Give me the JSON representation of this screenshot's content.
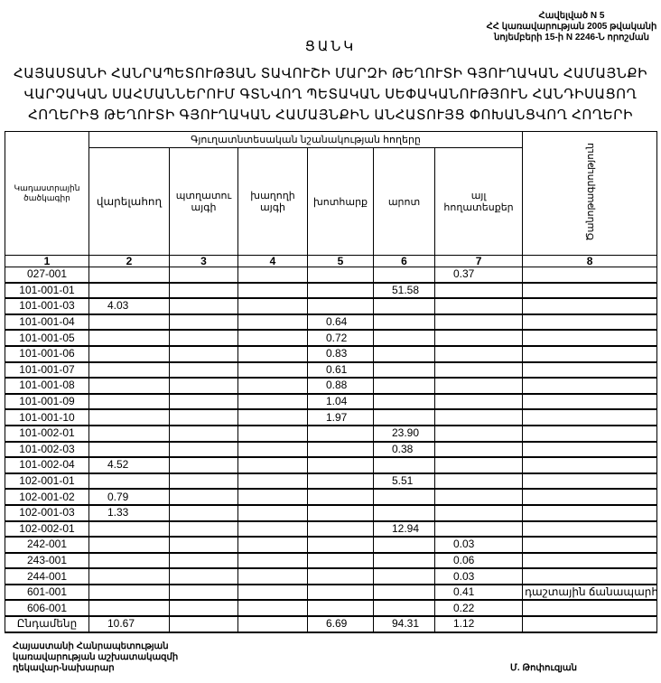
{
  "annex": {
    "line1": "Հավելված N 5",
    "line2": "ՀՀ կառավարության 2005 թվականի",
    "line3": "նոյեմբերի 15-ի N 2246-Ն որոշման"
  },
  "title": "ՑԱՆԿ",
  "heading": {
    "line1": "ՀԱՅԱՍՏԱՆԻ ՀԱՆՐԱՊԵՏՈՒԹՅԱՆ  ՏԱՎՈՒՇԻ  ՄԱՐԶԻ ԹԵՂՈՒՏԻ ԳՅՈՒՂԱԿԱՆ  ՀԱՄԱՅՆՔԻ",
    "line2": "ՎԱՐՉԱԿԱՆ ՍԱՀՄԱՆՆԵՐՈՒՄ  ԳՏՆՎՈՂ  ՊԵՏԱԿԱՆ ՍԵՓԱԿԱՆՈՒԹՅՈՒՆ  ՀԱՆԴԻՍԱՑՈՂ",
    "line3": "ՀՈՂԵՐԻՑ  ԹԵՂՈՒՏԻ ԳՅՈՒՂԱԿԱՆ ՀԱՄԱՅՆՔԻՆ ԱՆՀԱՏՈՒՅՑ ՓՈԽԱՆՑՎՈՂ   ՀՈՂԵՐԻ"
  },
  "table": {
    "group_header": "Գյուղատնտեսական նշանակության հողերը",
    "columns": [
      "Կադաստրային ծածկագիր",
      "վարելահող",
      "պտղատու այգի",
      "խաղողի այգի",
      "խոտհարք",
      "արոտ",
      "այլ հողատեսքեր",
      "Ծանոթագրություն"
    ],
    "column_numbers": [
      "1",
      "2",
      "3",
      "4",
      "5",
      "6",
      "7",
      "8"
    ],
    "rows": [
      [
        "027-001",
        "",
        "",
        "",
        "",
        "",
        "0.37",
        ""
      ],
      [
        "101-001-01",
        "",
        "",
        "",
        "",
        "51.58",
        "",
        ""
      ],
      [
        "101-001-03",
        "4.03",
        "",
        "",
        "",
        "",
        "",
        ""
      ],
      [
        "101-001-04",
        "",
        "",
        "",
        "0.64",
        "",
        "",
        ""
      ],
      [
        "101-001-05",
        "",
        "",
        "",
        "0.72",
        "",
        "",
        ""
      ],
      [
        "101-001-06",
        "",
        "",
        "",
        "0.83",
        "",
        "",
        ""
      ],
      [
        "101-001-07",
        "",
        "",
        "",
        "0.61",
        "",
        "",
        ""
      ],
      [
        "101-001-08",
        "",
        "",
        "",
        "0.88",
        "",
        "",
        ""
      ],
      [
        "101-001-09",
        "",
        "",
        "",
        "1.04",
        "",
        "",
        ""
      ],
      [
        "101-001-10",
        "",
        "",
        "",
        "1.97",
        "",
        "",
        ""
      ],
      [
        "101-002-01",
        "",
        "",
        "",
        "",
        "23.90",
        "",
        ""
      ],
      [
        "101-002-03",
        "",
        "",
        "",
        "",
        "0.38",
        "",
        ""
      ],
      [
        "101-002-04",
        "4.52",
        "",
        "",
        "",
        "",
        "",
        ""
      ],
      [
        "102-001-01",
        "",
        "",
        "",
        "",
        "5.51",
        "",
        ""
      ],
      [
        "102-001-02",
        "0.79",
        "",
        "",
        "",
        "",
        "",
        ""
      ],
      [
        "102-001-03",
        "1.33",
        "",
        "",
        "",
        "",
        "",
        ""
      ],
      [
        "102-002-01",
        "",
        "",
        "",
        "",
        "12.94",
        "",
        ""
      ],
      [
        "242-001",
        "",
        "",
        "",
        "",
        "",
        "0.03",
        ""
      ],
      [
        "243-001",
        "",
        "",
        "",
        "",
        "",
        "0.06",
        ""
      ],
      [
        "244-001",
        "",
        "",
        "",
        "",
        "",
        "0.03",
        ""
      ],
      [
        "601-001",
        "",
        "",
        "",
        "",
        "",
        "0.41",
        "դաշտային ճանապարհ"
      ],
      [
        "606-001",
        "",
        "",
        "",
        "",
        "",
        "0.22",
        ""
      ],
      [
        "Ընդամենը",
        "10.67",
        "",
        "",
        "6.69",
        "94.31",
        "1.12",
        ""
      ]
    ]
  },
  "footer": {
    "position_line1": "Հայաստանի Հանրապետության",
    "position_line2": "կառավարության աշխատակազմի",
    "position_line3": "ղեկավար-նախարար",
    "signatory": "Մ. Թոփուզյան"
  }
}
